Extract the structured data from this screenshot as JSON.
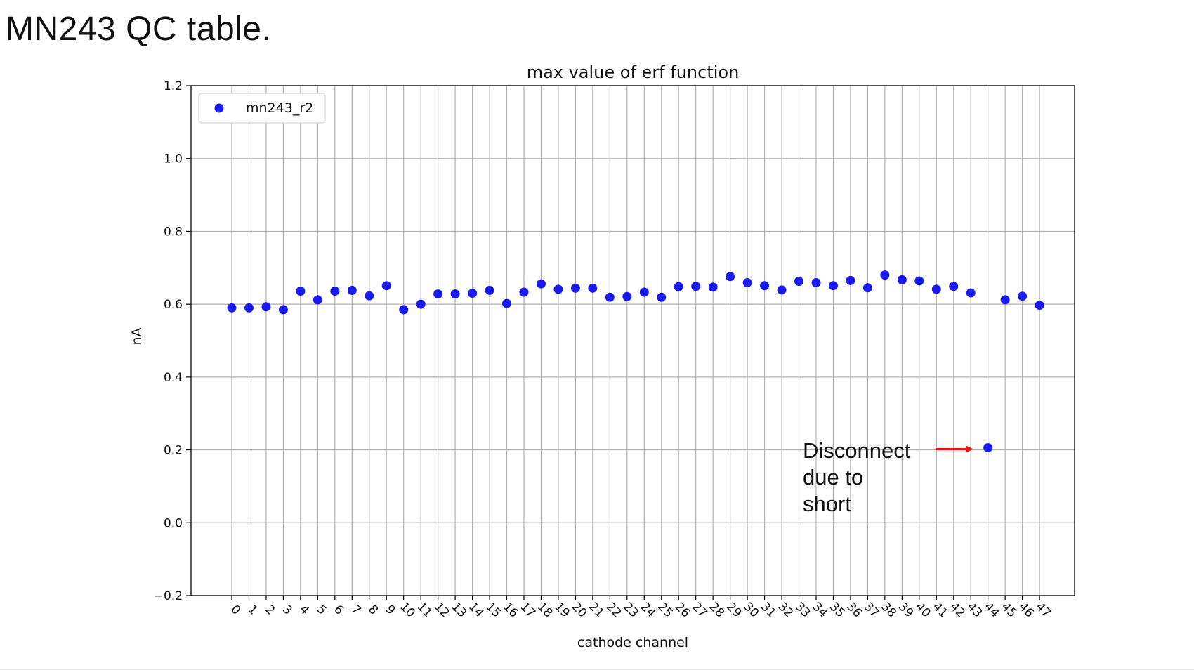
{
  "slide": {
    "title": "MN243 QC table."
  },
  "chart_data": {
    "type": "scatter",
    "title": "max value of erf function",
    "xlabel": "cathode channel",
    "ylabel": "nA",
    "ylim": [
      -0.2,
      1.2
    ],
    "yticks": [
      -0.2,
      0.0,
      0.2,
      0.4,
      0.6,
      0.8,
      1.0,
      1.2
    ],
    "ytick_labels": [
      "−0.2",
      "0.0",
      "0.2",
      "0.4",
      "0.6",
      "0.8",
      "1.0",
      "1.2"
    ],
    "x": [
      0,
      1,
      2,
      3,
      4,
      5,
      6,
      7,
      8,
      9,
      10,
      11,
      12,
      13,
      14,
      15,
      16,
      17,
      18,
      19,
      20,
      21,
      22,
      23,
      24,
      25,
      26,
      27,
      28,
      29,
      30,
      31,
      32,
      33,
      34,
      35,
      36,
      37,
      38,
      39,
      40,
      41,
      42,
      43,
      44,
      45,
      46,
      47
    ],
    "xtick_labels": [
      "0",
      "1",
      "2",
      "3",
      "4",
      "5",
      "6",
      "7",
      "8",
      "9",
      "10",
      "11",
      "12",
      "13",
      "14",
      "15",
      "16",
      "17",
      "18",
      "19",
      "20",
      "21",
      "22",
      "23",
      "24",
      "25",
      "26",
      "27",
      "28",
      "29",
      "30",
      "31",
      "32",
      "33",
      "34",
      "35",
      "36",
      "37",
      "38",
      "39",
      "40",
      "41",
      "42",
      "43",
      "44",
      "45",
      "46",
      "47"
    ],
    "grid": true,
    "legend_position": "top-left",
    "series": [
      {
        "name": "mn243_r2",
        "color": "#1a1aee",
        "values": [
          0.59,
          0.59,
          0.593,
          0.585,
          0.636,
          0.612,
          0.636,
          0.638,
          0.623,
          0.651,
          0.585,
          0.6,
          0.628,
          0.628,
          0.63,
          0.638,
          0.602,
          0.633,
          0.656,
          0.641,
          0.644,
          0.644,
          0.619,
          0.621,
          0.633,
          0.619,
          0.648,
          0.649,
          0.647,
          0.676,
          0.659,
          0.651,
          0.639,
          0.663,
          0.659,
          0.651,
          0.665,
          0.645,
          0.68,
          0.667,
          0.664,
          0.641,
          0.649,
          0.631,
          0.206,
          0.612,
          0.622,
          0.597
        ]
      }
    ],
    "annotation": {
      "lines": [
        "Disconnect",
        "due to",
        "short"
      ],
      "target_x": 44,
      "target_y": 0.206,
      "arrow_color": "#ee1111"
    }
  }
}
